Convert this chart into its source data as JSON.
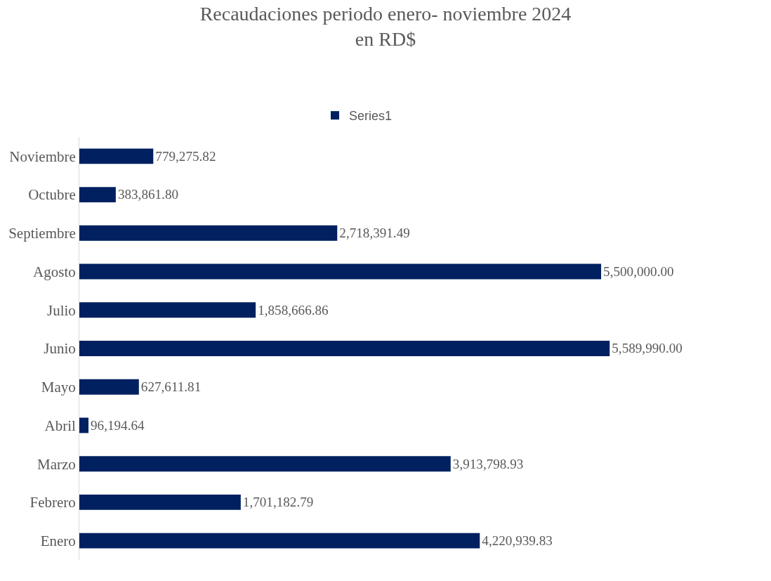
{
  "chart_data": {
    "type": "bar",
    "orientation": "horizontal",
    "title": "Recaudaciones periodo enero- noviembre 2024\nen RD$",
    "categories": [
      "Noviembre",
      "Octubre",
      "Septiembre",
      "Agosto",
      "Julio",
      "Junio",
      "Mayo",
      "Abril",
      "Marzo",
      "Febrero",
      "Enero"
    ],
    "series": [
      {
        "name": "Series1",
        "color": "#002060",
        "values": [
          779275.82,
          383861.8,
          2718391.49,
          5500000.0,
          1858666.86,
          5589990.0,
          627611.81,
          96194.64,
          3913798.93,
          1701182.79,
          4220939.83
        ],
        "value_labels": [
          "779,275.82",
          "383,861.80",
          "2,718,391.49",
          "5,500,000.00",
          "1,858,666.86",
          "5,589,990.00",
          "627,611.81",
          "96,194.64",
          "3,913,798.93",
          "1,701,182.79",
          "4,220,939.83"
        ]
      }
    ],
    "legend": "top"
  }
}
